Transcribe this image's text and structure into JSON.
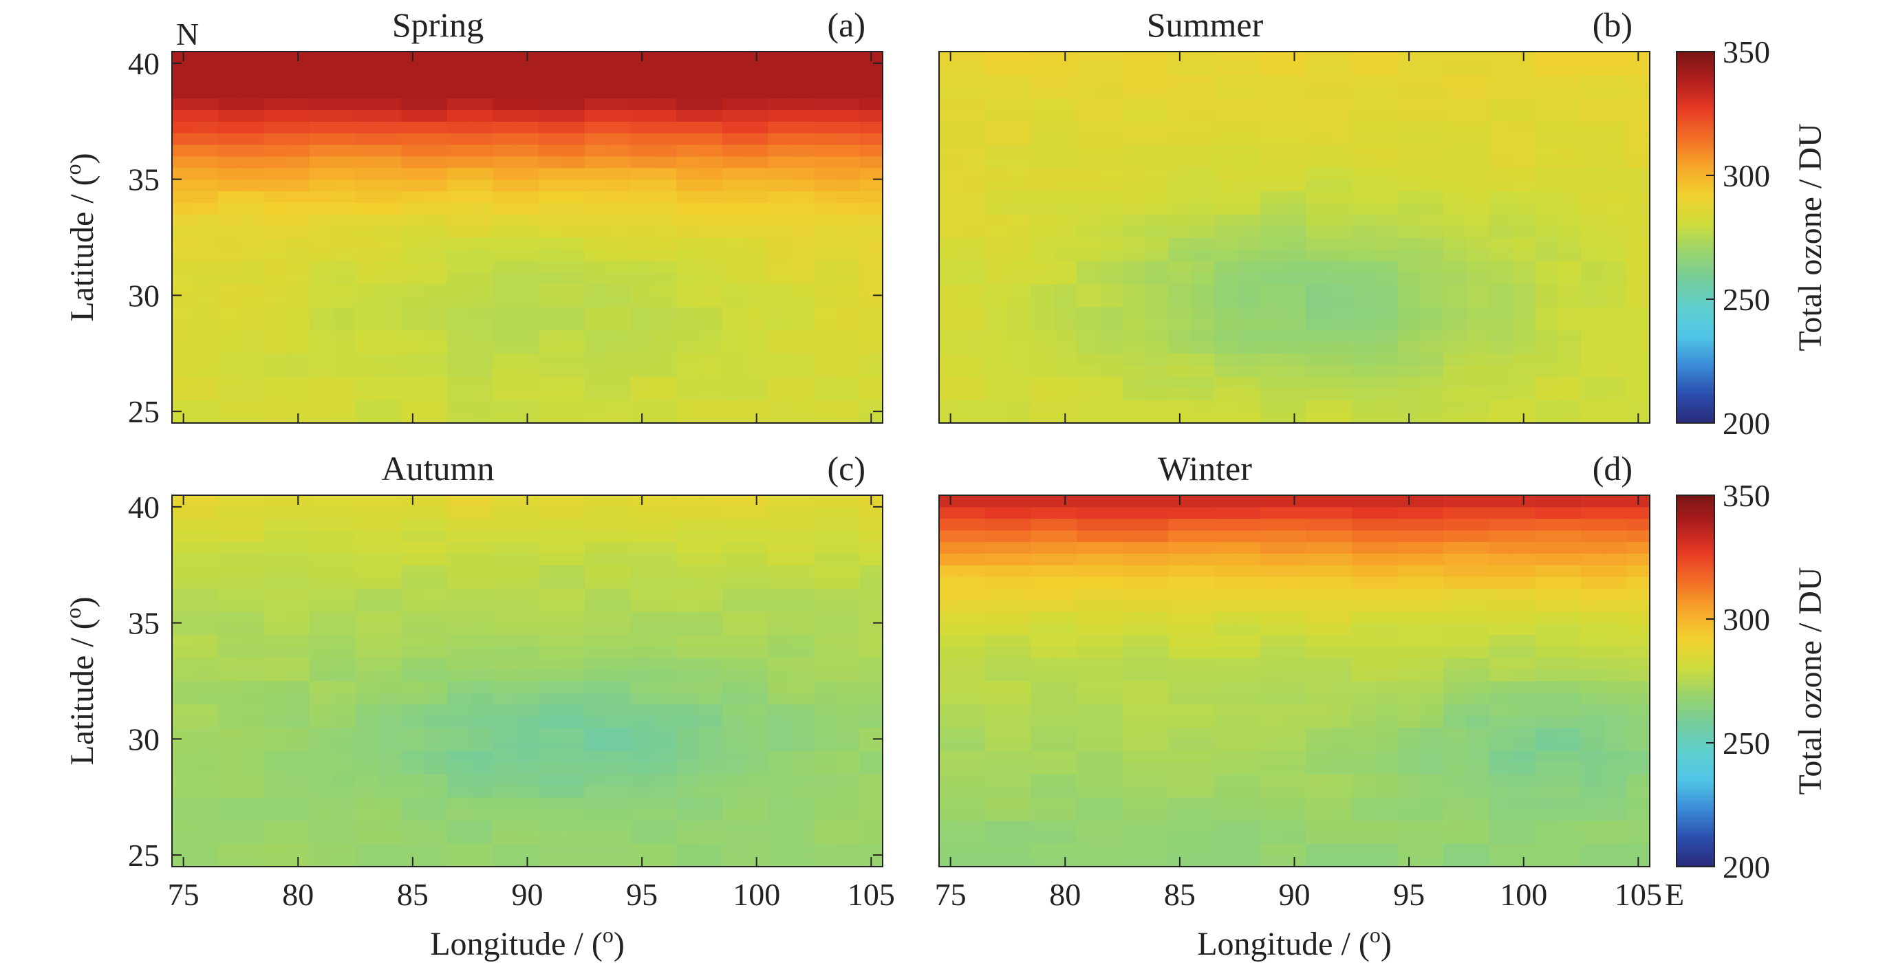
{
  "chart_data": [
    {
      "type": "heatmap",
      "panel_id": "a",
      "title": "Spring",
      "panel_label": "(a)",
      "xlabel": "",
      "ylabel": "Latitude / (o)",
      "xlim": [
        74.5,
        105.5
      ],
      "ylim": [
        24.5,
        40.5
      ],
      "xticks": [],
      "yticks": [
        25,
        30,
        35,
        40
      ],
      "corner_label": "N",
      "model": {
        "base": 286,
        "lat_center": 29.0,
        "lat_gain": 0.9,
        "lat_quad": 1.1,
        "lat_quad_above": 32.0,
        "lon_center": 90.0,
        "lon_sigma": 12.0,
        "lat_sigma": 4.0,
        "bowl_depth": 10.0,
        "east_offset": 0.0,
        "min": 265,
        "max": 340
      },
      "approx_values_note_free": true
    },
    {
      "type": "heatmap",
      "panel_id": "b",
      "title": "Summer",
      "panel_label": "(b)",
      "xlabel": "",
      "ylabel": "",
      "xlim": [
        74.5,
        105.5
      ],
      "ylim": [
        24.5,
        40.5
      ],
      "xticks": [],
      "yticks": [],
      "model": {
        "base": 284,
        "lat_center": 31.0,
        "lat_gain": 0.3,
        "lat_quad": 0.15,
        "lat_quad_above": 36.0,
        "lon_center": 91.0,
        "lon_sigma": 10.0,
        "lat_sigma": 4.0,
        "bowl_depth": 18.0,
        "east_offset": 0.0,
        "min": 263,
        "max": 300
      }
    },
    {
      "type": "heatmap",
      "panel_id": "c",
      "title": "Autumn",
      "panel_label": "(c)",
      "xlabel": "",
      "ylabel": "Latitude / (o)",
      "xlim": [
        74.5,
        105.5
      ],
      "ylim": [
        24.5,
        40.5
      ],
      "xticks": [],
      "yticks": [
        25,
        30,
        35,
        40
      ],
      "model": {
        "base": 272,
        "lat_center": 30.0,
        "lat_gain": 0.5,
        "lat_quad": 0.35,
        "lat_quad_above": 35.0,
        "lon_center": 92.0,
        "lon_sigma": 10.0,
        "lat_sigma": 3.0,
        "bowl_depth": 14.0,
        "east_offset": 0.0,
        "min": 256,
        "max": 296
      }
    },
    {
      "type": "heatmap",
      "panel_id": "d",
      "title": "Winter",
      "panel_label": "(d)",
      "xlabel": "Longitude / (o)",
      "ylabel": "",
      "xlim": [
        74.5,
        105.5
      ],
      "ylim": [
        24.5,
        40.5
      ],
      "xticks": [
        75,
        80,
        85,
        90,
        95,
        100,
        105
      ],
      "yticks": [],
      "corner_label": "E",
      "model": {
        "base": 268,
        "lat_center": 26.0,
        "lat_gain": 1.2,
        "lat_quad": 0.9,
        "lat_quad_above": 33.0,
        "lon_center": 101.0,
        "lon_sigma": 6.0,
        "lat_sigma": 2.5,
        "bowl_depth": 12.0,
        "east_offset": 0.0,
        "min": 252,
        "max": 332
      }
    }
  ],
  "extra_xlabels": [
    {
      "panel": "c",
      "xlabel": "Longitude / (o)",
      "xticks": [
        75,
        80,
        85,
        90,
        95,
        100,
        105
      ]
    }
  ],
  "colorbars": [
    {
      "label": "Total ozone / DU",
      "ticks": [
        200,
        250,
        300,
        350
      ],
      "range": [
        200,
        350
      ]
    },
    {
      "label": "Total ozone / DU",
      "ticks": [
        200,
        250,
        300,
        350
      ],
      "range": [
        200,
        350
      ]
    }
  ],
  "colormap": [
    "#2a2a7a",
    "#2b4eae",
    "#3b8ad8",
    "#4fc4e6",
    "#5fd0d0",
    "#74cc9c",
    "#9ad46c",
    "#cfdc3a",
    "#f2d02e",
    "#f7a52a",
    "#f26d26",
    "#e63a24",
    "#b01e1e",
    "#7a1414"
  ]
}
